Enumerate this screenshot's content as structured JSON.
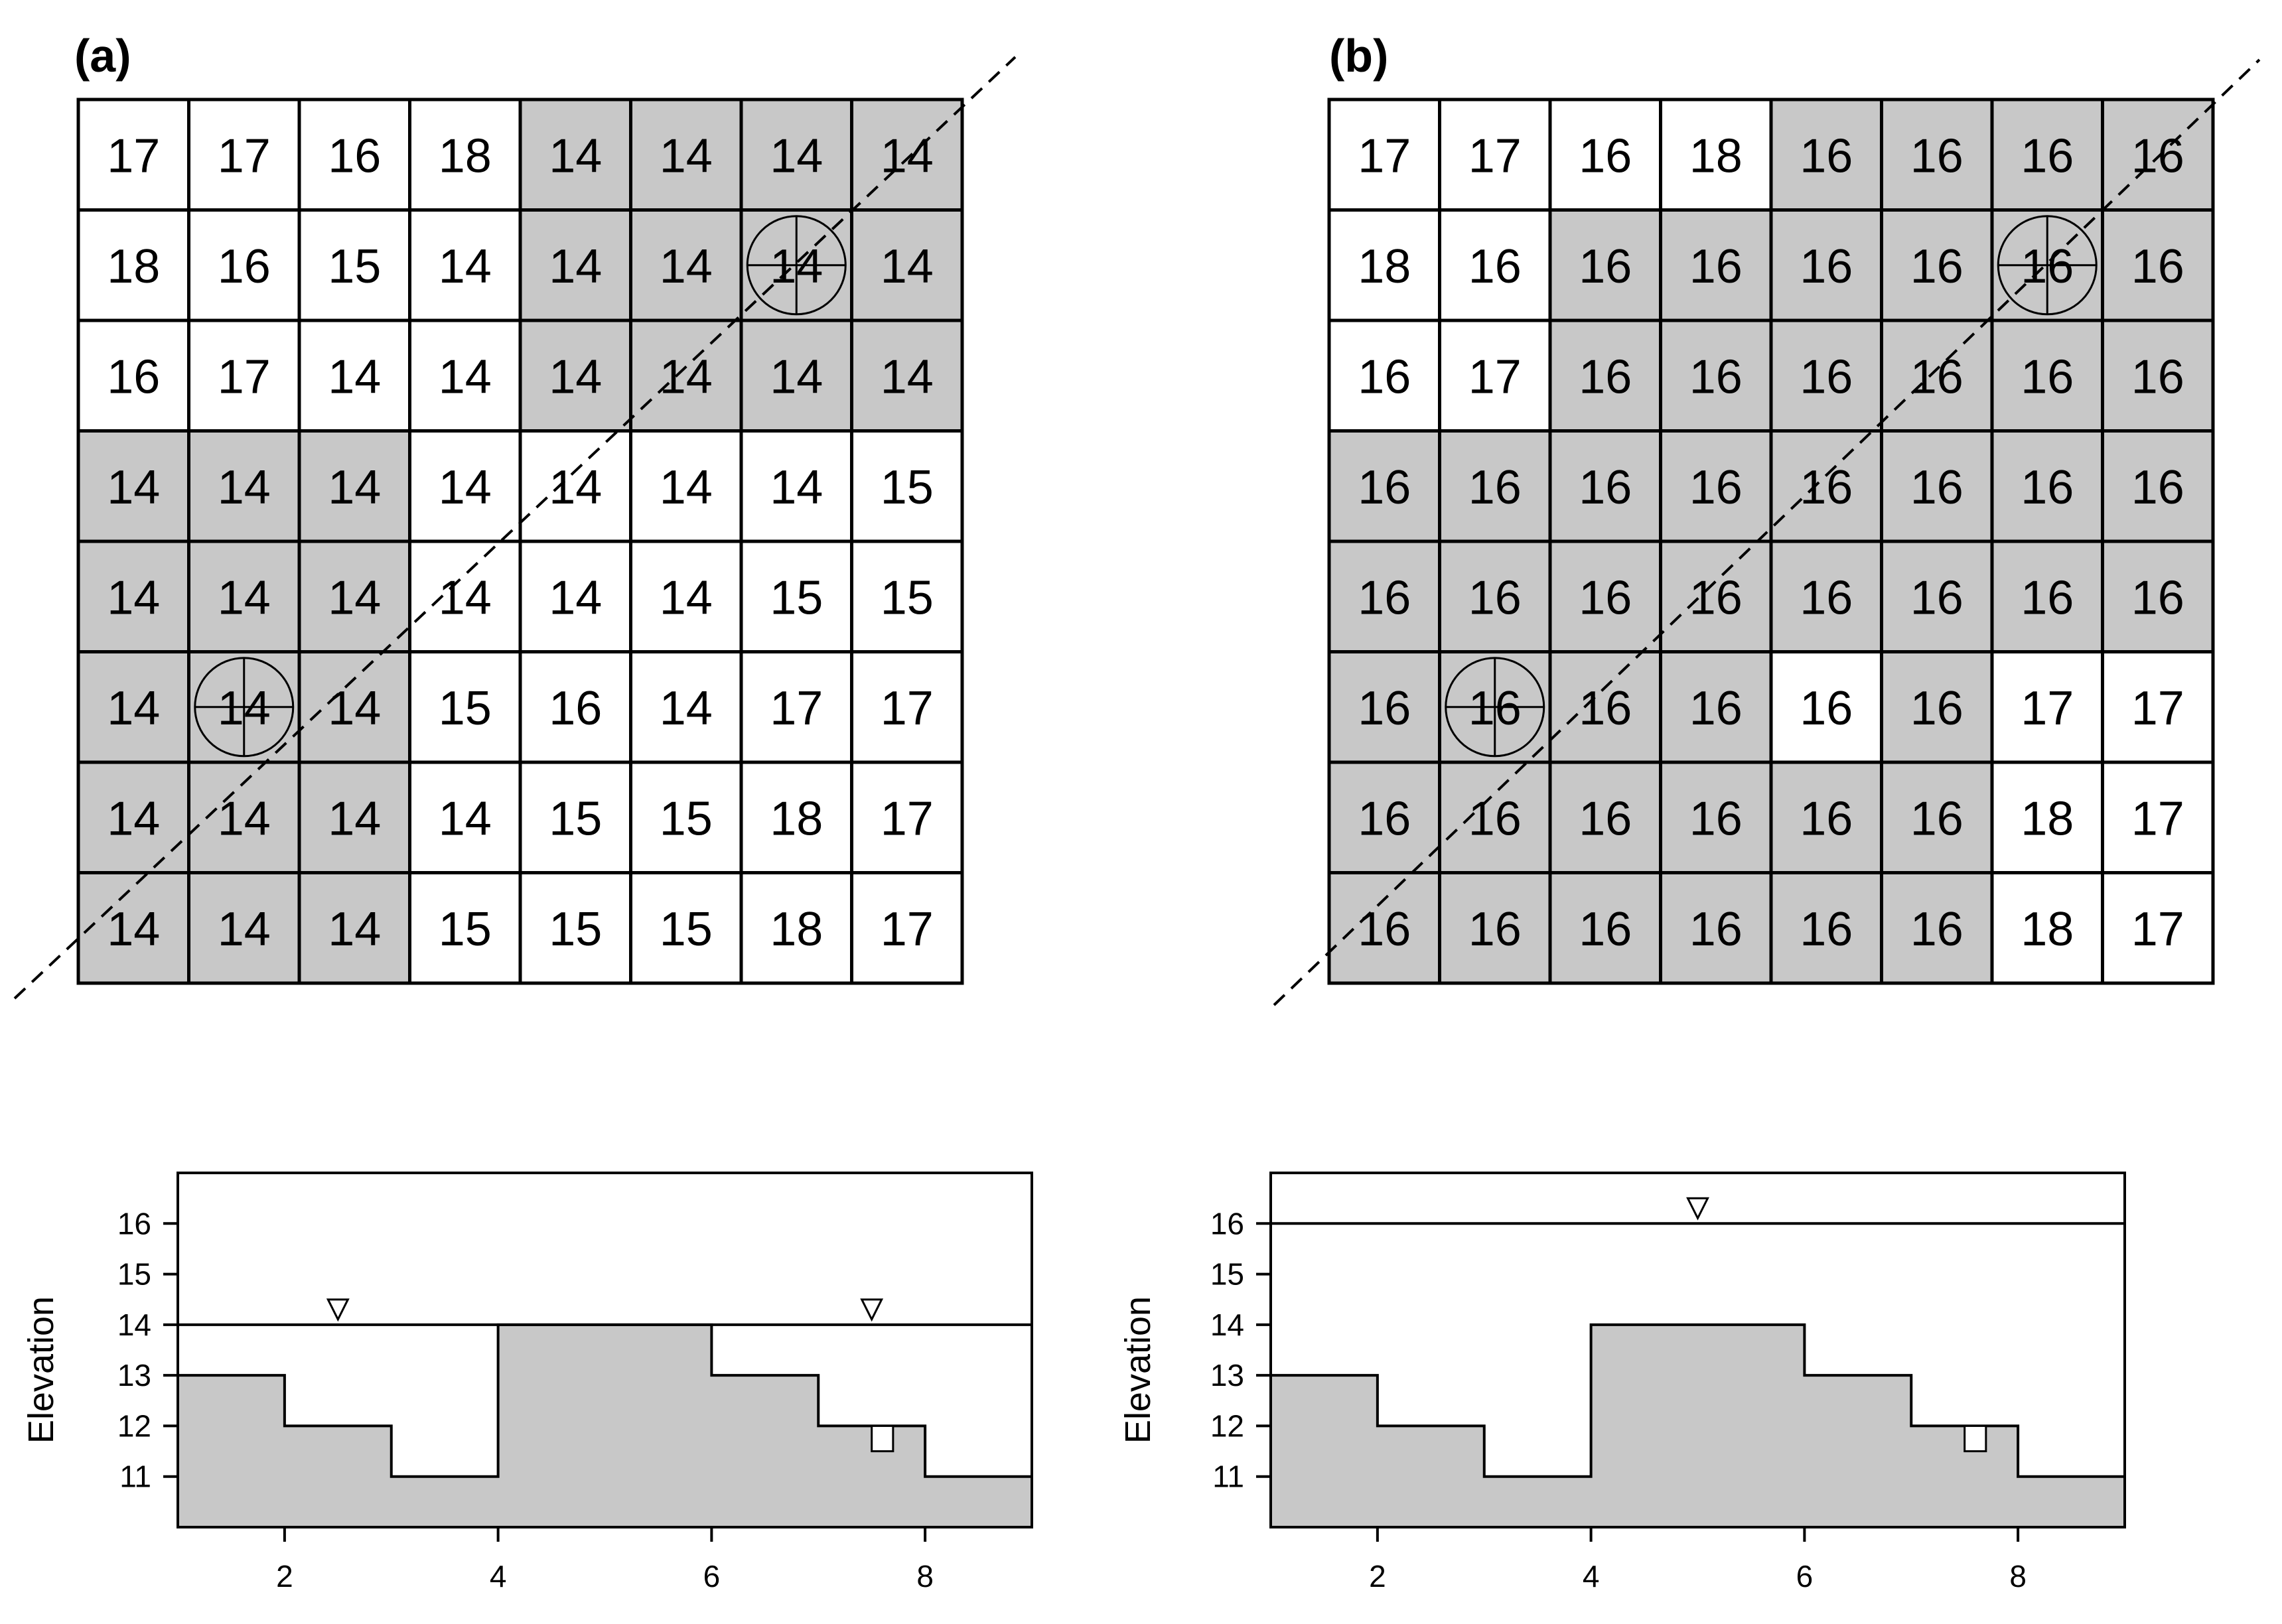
{
  "panels": [
    {
      "label": "(a)",
      "grid": [
        [
          17,
          17,
          16,
          18,
          14,
          14,
          14,
          14
        ],
        [
          18,
          16,
          15,
          14,
          14,
          14,
          14,
          14
        ],
        [
          16,
          17,
          14,
          14,
          14,
          14,
          14,
          14
        ],
        [
          14,
          14,
          14,
          14,
          14,
          14,
          14,
          15
        ],
        [
          14,
          14,
          14,
          14,
          14,
          14,
          15,
          15
        ],
        [
          14,
          14,
          14,
          15,
          16,
          14,
          17,
          17
        ],
        [
          14,
          14,
          14,
          14,
          15,
          15,
          18,
          17
        ],
        [
          14,
          14,
          14,
          15,
          15,
          15,
          18,
          17
        ]
      ],
      "shaded": [
        [
          0,
          0,
          0,
          0,
          1,
          1,
          1,
          1
        ],
        [
          0,
          0,
          0,
          0,
          1,
          1,
          1,
          1
        ],
        [
          0,
          0,
          0,
          0,
          1,
          1,
          1,
          1
        ],
        [
          1,
          1,
          1,
          0,
          0,
          0,
          0,
          0
        ],
        [
          1,
          1,
          1,
          0,
          0,
          0,
          0,
          0
        ],
        [
          1,
          1,
          1,
          0,
          0,
          0,
          0,
          0
        ],
        [
          1,
          1,
          1,
          0,
          0,
          0,
          0,
          0
        ],
        [
          1,
          1,
          1,
          0,
          0,
          0,
          0,
          0
        ]
      ],
      "markers": [
        [
          1,
          6
        ],
        [
          5,
          1
        ]
      ]
    },
    {
      "label": "(b)",
      "grid": [
        [
          17,
          17,
          16,
          18,
          16,
          16,
          16,
          16
        ],
        [
          18,
          16,
          16,
          16,
          16,
          16,
          16,
          16
        ],
        [
          16,
          17,
          16,
          16,
          16,
          16,
          16,
          16
        ],
        [
          16,
          16,
          16,
          16,
          16,
          16,
          16,
          16
        ],
        [
          16,
          16,
          16,
          16,
          16,
          16,
          16,
          16
        ],
        [
          16,
          16,
          16,
          16,
          16,
          16,
          17,
          17
        ],
        [
          16,
          16,
          16,
          16,
          16,
          16,
          18,
          17
        ],
        [
          16,
          16,
          16,
          16,
          16,
          16,
          18,
          17
        ]
      ],
      "shaded": [
        [
          0,
          0,
          0,
          0,
          1,
          1,
          1,
          1
        ],
        [
          0,
          0,
          1,
          1,
          1,
          1,
          1,
          1
        ],
        [
          0,
          0,
          1,
          1,
          1,
          1,
          1,
          1
        ],
        [
          1,
          1,
          1,
          1,
          1,
          1,
          1,
          1
        ],
        [
          1,
          1,
          1,
          1,
          1,
          1,
          1,
          1
        ],
        [
          1,
          1,
          1,
          1,
          0,
          1,
          0,
          0
        ],
        [
          1,
          1,
          1,
          1,
          1,
          1,
          0,
          0
        ],
        [
          1,
          1,
          1,
          1,
          1,
          1,
          0,
          0
        ]
      ],
      "markers": [
        [
          1,
          6
        ],
        [
          5,
          1
        ]
      ]
    }
  ],
  "profiles": [
    {
      "ylabel": "Elevation",
      "xlim": [
        1,
        9
      ],
      "ylim": [
        10,
        17
      ],
      "xticks": [
        2,
        4,
        6,
        8
      ],
      "yticks": [
        11,
        12,
        13,
        14,
        15,
        16
      ],
      "terrain": [
        [
          1,
          13
        ],
        [
          2,
          12
        ],
        [
          3,
          11
        ],
        [
          4,
          14
        ],
        [
          5,
          14
        ],
        [
          6,
          13
        ],
        [
          7,
          12
        ],
        [
          8,
          11
        ]
      ],
      "notch": {
        "x": [
          7.5,
          7.7
        ],
        "bottom": 11.5,
        "top": 12
      },
      "water_level": 14,
      "water_markers_x": [
        2.5,
        7.5
      ]
    },
    {
      "ylabel": "Elevation",
      "xlim": [
        1,
        9
      ],
      "ylim": [
        10,
        17
      ],
      "xticks": [
        2,
        4,
        6,
        8
      ],
      "yticks": [
        11,
        12,
        13,
        14,
        15,
        16
      ],
      "terrain": [
        [
          1,
          13
        ],
        [
          2,
          12
        ],
        [
          3,
          11
        ],
        [
          4,
          14
        ],
        [
          5,
          14
        ],
        [
          6,
          13
        ],
        [
          7,
          12
        ],
        [
          8,
          11
        ]
      ],
      "notch": {
        "x": [
          7.5,
          7.7
        ],
        "bottom": 11.5,
        "top": 12
      },
      "water_level": 16,
      "water_markers_x": [
        5
      ]
    }
  ],
  "colors": {
    "shade": "#c8c8c8",
    "line": "#000000",
    "background": "#ffffff"
  }
}
